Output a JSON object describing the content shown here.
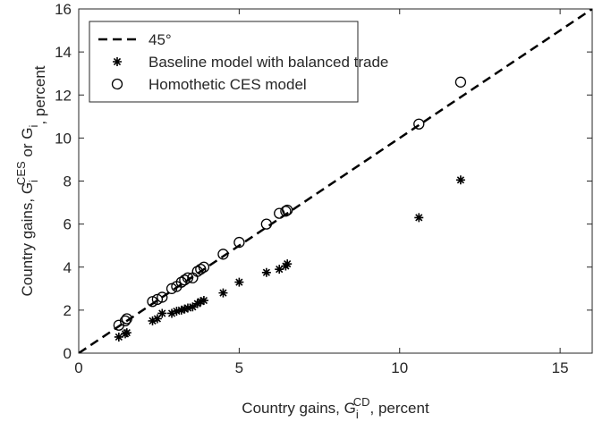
{
  "chart_data": {
    "type": "scatter",
    "xlabel": [
      "Country gains, G",
      "i",
      "CD",
      ", percent"
    ],
    "ylabel": [
      "Country gains, G",
      "i",
      "CES",
      " or G",
      "i",
      ", percent"
    ],
    "xlim": [
      0,
      16
    ],
    "ylim": [
      0,
      16
    ],
    "xticks": [
      0,
      5,
      10,
      15
    ],
    "yticks": [
      0,
      2,
      4,
      6,
      8,
      10,
      12,
      14,
      16
    ],
    "legend": "upper-left",
    "series": [
      {
        "name": "45°",
        "color": "#000000",
        "style": "dashed",
        "x": [
          0,
          16
        ],
        "values": [
          0,
          16
        ]
      },
      {
        "name": "Baseline model with balanced trade",
        "color": "#000000",
        "marker": "star",
        "x": [
          1.25,
          1.45,
          1.5,
          2.3,
          2.45,
          2.6,
          2.9,
          3.05,
          3.2,
          3.3,
          3.4,
          3.55,
          3.7,
          3.8,
          3.9,
          4.5,
          5.0,
          5.85,
          6.25,
          6.45,
          6.5,
          10.6,
          11.9
        ],
        "values": [
          0.75,
          0.9,
          0.95,
          1.5,
          1.6,
          1.85,
          1.85,
          1.95,
          2.0,
          2.05,
          2.1,
          2.15,
          2.3,
          2.4,
          2.45,
          2.8,
          3.3,
          3.75,
          3.9,
          4.05,
          4.15,
          6.3,
          8.05
        ]
      },
      {
        "name": "Homothetic CES model",
        "color": "#000000",
        "marker": "circle",
        "x": [
          1.25,
          1.45,
          1.5,
          2.3,
          2.45,
          2.6,
          2.9,
          3.05,
          3.2,
          3.3,
          3.4,
          3.55,
          3.7,
          3.8,
          3.9,
          4.5,
          5.0,
          5.85,
          6.25,
          6.45,
          6.5,
          10.6,
          11.9
        ],
        "values": [
          1.3,
          1.5,
          1.6,
          2.4,
          2.5,
          2.6,
          3.0,
          3.1,
          3.3,
          3.4,
          3.5,
          3.5,
          3.8,
          3.9,
          4.0,
          4.6,
          5.15,
          6.0,
          6.5,
          6.6,
          6.65,
          10.65,
          12.6
        ]
      }
    ]
  }
}
